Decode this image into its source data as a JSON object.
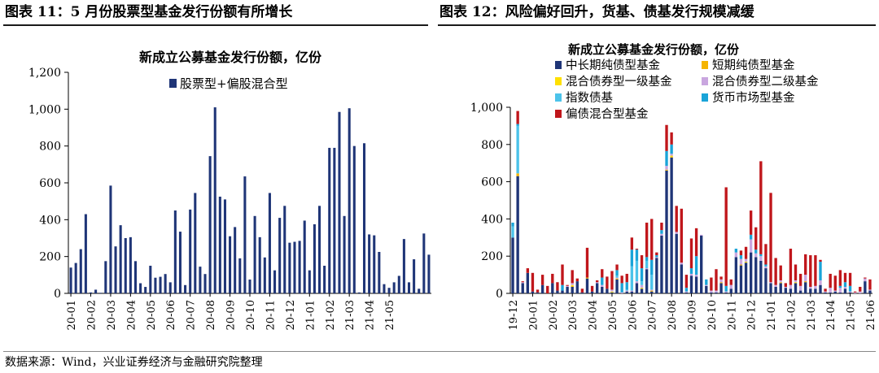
{
  "figures": {
    "left_title": "图表 11：5 月份股票型基金发行份额有所增长",
    "right_title": "图表 12：风险偏好回升，货基、债基发行规模减缓"
  },
  "source": "数据来源：Wind，兴业证券经济与金融研究院整理",
  "colors": {
    "navy": "#1f3577",
    "gold": "#f5b400",
    "yellow": "#ffe000",
    "lavender": "#c9a6df",
    "sky": "#4cc3ea",
    "blue": "#1aa4d8",
    "red": "#c0161b"
  },
  "chart_data": [
    {
      "type": "bar",
      "title": "新成立公募基金发行份额，亿份",
      "legend": "股票型+偏股混合型",
      "ylim": [
        0,
        1200
      ],
      "yticks": [
        "0",
        "200",
        "400",
        "600",
        "800",
        "1,000",
        "1,200"
      ],
      "xtick_labels": [
        "20-01",
        "20-02",
        "20-03",
        "20-04",
        "20-05",
        "20-06",
        "20-07",
        "20-08",
        "20-09",
        "20-10",
        "20-11",
        "20-12",
        "21-01",
        "21-02",
        "21-03",
        "21-04",
        "21-05"
      ],
      "xtick_positions": [
        0,
        4,
        8,
        12,
        16,
        20,
        24,
        28,
        32,
        36,
        40,
        44,
        48,
        52,
        56,
        60,
        64
      ],
      "values": [
        140,
        165,
        240,
        430,
        5,
        20,
        3,
        175,
        585,
        255,
        370,
        300,
        305,
        175,
        55,
        35,
        150,
        85,
        90,
        105,
        60,
        450,
        335,
        45,
        455,
        545,
        145,
        105,
        745,
        1010,
        525,
        510,
        310,
        360,
        190,
        635,
        75,
        420,
        305,
        195,
        545,
        125,
        410,
        475,
        275,
        280,
        285,
        395,
        125,
        375,
        475,
        150,
        790,
        790,
        985,
        420,
        1005,
        800,
        5,
        815,
        320,
        315,
        225,
        50,
        30,
        60,
        95,
        295,
        60,
        185,
        25,
        325,
        210
      ]
    },
    {
      "type": "bar",
      "stacked": true,
      "title": "新成立公募基金发行份额，亿份",
      "ylim": [
        0,
        1000
      ],
      "yticks": [
        "0",
        "200",
        "400",
        "600",
        "800",
        "1,000"
      ],
      "xtick_labels": [
        "19-12",
        "20-01",
        "20-02",
        "20-03",
        "20-04",
        "20-05",
        "20-06",
        "20-07",
        "20-08",
        "20-09",
        "20-10",
        "20-11",
        "20-12",
        "21-01",
        "21-02",
        "21-03",
        "21-04",
        "21-05",
        "21-06"
      ],
      "xtick_positions": [
        0,
        4,
        8,
        12,
        16,
        20,
        24,
        28,
        32,
        36,
        40,
        44,
        48,
        52,
        56,
        60,
        64,
        68,
        72
      ],
      "series": [
        {
          "name": "中长期纯债型基金",
          "color": "#1f3577",
          "values": [
            300,
            630,
            55,
            110,
            10,
            5,
            45,
            0,
            55,
            15,
            15,
            35,
            35,
            65,
            5,
            80,
            10,
            55,
            35,
            25,
            5,
            75,
            0,
            10,
            10,
            55,
            25,
            130,
            10,
            190,
            310,
            660,
            730,
            320,
            155,
            5,
            95,
            90,
            310,
            40,
            5,
            5,
            55,
            5,
            25,
            195,
            150,
            165,
            220,
            195,
            175,
            135,
            55,
            35,
            55,
            30,
            25,
            55,
            15,
            60,
            25,
            25,
            45,
            5,
            5,
            10,
            5,
            25,
            5,
            0,
            0,
            65,
            15
          ]
        },
        {
          "name": "短期纯债型基金",
          "color": "#f5b400",
          "values": [
            0,
            15,
            0,
            0,
            0,
            0,
            0,
            0,
            0,
            0,
            0,
            0,
            5,
            0,
            0,
            5,
            0,
            0,
            0,
            0,
            0,
            5,
            0,
            0,
            0,
            0,
            0,
            0,
            5,
            0,
            0,
            5,
            5,
            0,
            0,
            0,
            0,
            0,
            0,
            0,
            0,
            0,
            5,
            0,
            0,
            0,
            5,
            0,
            0,
            0,
            0,
            0,
            0,
            0,
            5,
            0,
            0,
            0,
            0,
            5,
            0,
            0,
            0,
            0,
            0,
            0,
            0,
            0,
            0,
            0,
            0,
            0,
            0
          ]
        },
        {
          "name": "混合债券型一级基金",
          "color": "#ffe000",
          "values": [
            0,
            0,
            0,
            0,
            0,
            0,
            0,
            0,
            0,
            0,
            0,
            0,
            5,
            0,
            0,
            0,
            0,
            0,
            0,
            0,
            5,
            0,
            0,
            0,
            0,
            0,
            5,
            0,
            0,
            0,
            0,
            0,
            5,
            0,
            0,
            0,
            0,
            0,
            0,
            0,
            0,
            0,
            0,
            0,
            0,
            0,
            0,
            5,
            0,
            0,
            0,
            0,
            0,
            0,
            0,
            0,
            0,
            5,
            0,
            0,
            0,
            0,
            0,
            0,
            0,
            0,
            0,
            0,
            0,
            0,
            0,
            0,
            0
          ]
        },
        {
          "name": "混合债券型二级基金",
          "color": "#c9a6df",
          "values": [
            0,
            0,
            5,
            0,
            0,
            0,
            0,
            0,
            0,
            0,
            0,
            5,
            10,
            0,
            0,
            0,
            0,
            5,
            10,
            0,
            10,
            5,
            5,
            5,
            5,
            10,
            15,
            5,
            5,
            5,
            10,
            20,
            10,
            10,
            10,
            5,
            10,
            10,
            5,
            5,
            10,
            10,
            15,
            5,
            20,
            25,
            30,
            15,
            70,
            20,
            25,
            10,
            5,
            10,
            10,
            5,
            20,
            10,
            25,
            35,
            10,
            15,
            25,
            5,
            25,
            5,
            25,
            10,
            5,
            5,
            10,
            15,
            5
          ]
        },
        {
          "name": "指数债基",
          "color": "#4cc3ea",
          "values": [
            60,
            255,
            0,
            0,
            0,
            0,
            0,
            0,
            0,
            0,
            0,
            0,
            0,
            0,
            0,
            0,
            0,
            0,
            0,
            0,
            0,
            10,
            0,
            5,
            130,
            110,
            20,
            40,
            80,
            0,
            0,
            0,
            0,
            0,
            0,
            0,
            0,
            0,
            0,
            0,
            0,
            0,
            0,
            0,
            0,
            0,
            0,
            0,
            0,
            0,
            0,
            0,
            0,
            0,
            0,
            0,
            0,
            0,
            0,
            0,
            0,
            0,
            0,
            0,
            0,
            0,
            0,
            0,
            0,
            0,
            0,
            0,
            0
          ]
        },
        {
          "name": "货币市场型基金",
          "color": "#1aa4d8",
          "values": [
            20,
            10,
            0,
            0,
            0,
            0,
            0,
            0,
            0,
            0,
            30,
            0,
            0,
            0,
            0,
            0,
            0,
            0,
            40,
            0,
            0,
            30,
            50,
            40,
            90,
            60,
            70,
            20,
            80,
            10,
            20,
            80,
            50,
            0,
            0,
            20,
            30,
            100,
            0,
            30,
            0,
            0,
            0,
            30,
            0,
            20,
            20,
            0,
            25,
            20,
            10,
            10,
            0,
            0,
            0,
            0,
            0,
            0,
            0,
            0,
            0,
            0,
            100,
            0,
            0,
            0,
            10,
            25,
            30,
            0,
            0,
            0,
            0
          ]
        },
        {
          "name": "偏债混合型基金",
          "color": "#c0161b",
          "values": [
            0,
            70,
            5,
            25,
            100,
            15,
            55,
            40,
            50,
            45,
            110,
            5,
            70,
            15,
            20,
            160,
            30,
            10,
            45,
            65,
            100,
            30,
            40,
            45,
            65,
            5,
            70,
            185,
            220,
            15,
            40,
            140,
            65,
            140,
            290,
            70,
            160,
            150,
            0,
            0,
            70,
            115,
            15,
            530,
            30,
            0,
            25,
            65,
            130,
            120,
            500,
            110,
            480,
            145,
            80,
            20,
            195,
            85,
            65,
            110,
            170,
            165,
            10,
            15,
            75,
            80,
            85,
            50,
            70,
            5,
            25,
            5,
            55
          ]
        }
      ],
      "legend": [
        "中长期纯债型基金",
        "短期纯债型基金",
        "混合债券型一级基金",
        "混合债券型二级基金",
        "指数债基",
        "货币市场型基金",
        "偏债混合型基金"
      ]
    }
  ]
}
